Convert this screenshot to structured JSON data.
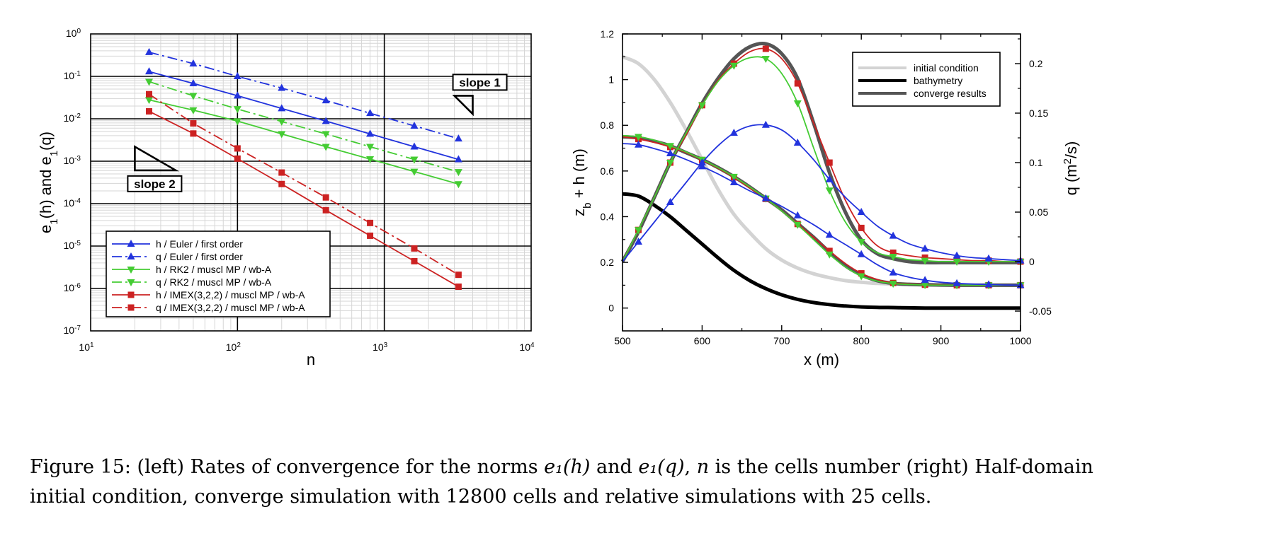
{
  "chart_data": [
    {
      "type": "line",
      "xscale": "log",
      "yscale": "log",
      "xlim": [
        10,
        10000
      ],
      "ylim": [
        1e-07,
        1
      ],
      "xlabel": "n",
      "ylabel": "e1(h)  and  e1(q)",
      "xtick_labels": [
        "10^1",
        "10^2",
        "10^3",
        "10^4"
      ],
      "ytick_labels": [
        "10^0",
        "10^-1",
        "10^-2",
        "10^-3",
        "10^-4",
        "10^-5",
        "10^-6",
        "10^-7"
      ],
      "grid": true,
      "legend_position": "bottom-left",
      "x": [
        25,
        50,
        100,
        200,
        400,
        800,
        1600,
        3200
      ],
      "series": [
        {
          "name": "h / Euler / first order",
          "color": "#2233dd",
          "dash": "solid",
          "marker": "triangle-up",
          "values": [
            0.13,
            0.068,
            0.035,
            0.0175,
            0.0088,
            0.0044,
            0.0022,
            0.0011
          ]
        },
        {
          "name": "q / Euler / first order",
          "color": "#2233dd",
          "dash": "dashdot",
          "marker": "triangle-up",
          "values": [
            0.37,
            0.2,
            0.1,
            0.053,
            0.027,
            0.0135,
            0.0068,
            0.0034
          ]
        },
        {
          "name": "h / RK2 / muscl MP / wb-A",
          "color": "#44cc33",
          "dash": "solid",
          "marker": "triangle-down",
          "values": [
            0.028,
            0.016,
            0.0088,
            0.0044,
            0.0022,
            0.00112,
            0.00057,
            0.00029
          ]
        },
        {
          "name": "q / RK2 / muscl MP / wb-A",
          "color": "#44cc33",
          "dash": "dashdot",
          "marker": "triangle-down",
          "values": [
            0.075,
            0.035,
            0.017,
            0.0086,
            0.0044,
            0.0022,
            0.0011,
            0.00056
          ]
        },
        {
          "name": "h / IMEX(3,2,2) / muscl MP / wb-A",
          "color": "#cc2222",
          "dash": "solid",
          "marker": "square",
          "values": [
            0.015,
            0.0045,
            0.00115,
            0.00029,
            7e-05,
            1.75e-05,
            4.4e-06,
            1.1e-06
          ]
        },
        {
          "name": "q / IMEX(3,2,2) / muscl MP / wb-A",
          "color": "#cc2222",
          "dash": "dashdot",
          "marker": "square",
          "values": [
            0.038,
            0.0078,
            0.002,
            0.00054,
            0.00014,
            3.5e-05,
            8.8e-06,
            2.1e-06
          ]
        }
      ],
      "annotations": [
        {
          "text": "slope 1",
          "triangle_n": [
            3000,
            4000
          ],
          "triangle_e": [
            0.035,
            0.013
          ],
          "slope": 1
        },
        {
          "text": "slope 2",
          "triangle_n": [
            20,
            38
          ],
          "triangle_e": [
            0.0022,
            0.00061
          ],
          "slope": 2
        }
      ]
    },
    {
      "type": "line",
      "xlim": [
        500,
        1000
      ],
      "ylim": [
        -0.1,
        1.2
      ],
      "y2lim": [
        -0.07,
        0.23
      ],
      "xlabel": "x (m)",
      "ylabel": "z_b + h (m)",
      "y2label": "q (m^2/s)",
      "xticks": [
        500,
        600,
        700,
        800,
        900,
        1000
      ],
      "yticks": [
        0,
        0.2,
        0.4,
        0.6,
        0.8,
        1,
        1.2
      ],
      "y2ticks": [
        -0.05,
        0,
        0.05,
        0.1,
        0.15,
        0.2
      ],
      "xtick_labels": [
        "500",
        "600",
        "700",
        "800",
        "900",
        "1000"
      ],
      "ytick_labels": [
        "0",
        "0.2",
        "0.4",
        "0.6",
        "0.8",
        "1",
        "1.2"
      ],
      "y2tick_labels": [
        "-0.05",
        "0",
        "0.05",
        "0.1",
        "0.15",
        "0.2"
      ],
      "legend_position": "top-right",
      "legend": [
        {
          "name": "initial condition",
          "color": "#d3d3d3"
        },
        {
          "name": "bathymetry",
          "color": "#000000"
        },
        {
          "name": "converge results",
          "color": "#555555"
        }
      ],
      "x": [
        500,
        520,
        540,
        560,
        580,
        600,
        620,
        640,
        660,
        680,
        700,
        720,
        740,
        760,
        780,
        800,
        820,
        840,
        860,
        880,
        900,
        920,
        940,
        960,
        980,
        1000
      ],
      "series": [
        {
          "name": "initial condition",
          "color": "#d3d3d3",
          "axis": "left",
          "marker": "none",
          "values": [
            1.1,
            1.07,
            1.0,
            0.9,
            0.78,
            0.65,
            0.52,
            0.41,
            0.33,
            0.26,
            0.21,
            0.175,
            0.15,
            0.133,
            0.12,
            0.113,
            0.108,
            0.105,
            0.103,
            0.102,
            0.101,
            0.1,
            0.1,
            0.1,
            0.1,
            0.1
          ]
        },
        {
          "name": "bathymetry",
          "color": "#000000",
          "axis": "left",
          "marker": "none",
          "values": [
            0.5,
            0.49,
            0.45,
            0.4,
            0.34,
            0.28,
            0.22,
            0.165,
            0.12,
            0.085,
            0.058,
            0.038,
            0.024,
            0.015,
            0.009,
            0.005,
            0.003,
            0.002,
            0.001,
            0.0,
            0.0,
            0.0,
            0.0,
            0.0,
            0.0,
            0.0
          ]
        },
        {
          "name": "converge results (z_b + h)",
          "color": "#555555",
          "axis": "left",
          "marker": "none",
          "values": [
            0.75,
            0.745,
            0.73,
            0.71,
            0.68,
            0.65,
            0.615,
            0.575,
            0.53,
            0.48,
            0.43,
            0.37,
            0.31,
            0.245,
            0.185,
            0.145,
            0.12,
            0.108,
            0.104,
            0.102,
            0.101,
            0.1,
            0.1,
            0.1,
            0.1,
            0.1
          ]
        },
        {
          "name": "converge results (q)",
          "color": "#555555",
          "axis": "right",
          "marker": "none",
          "values": [
            0.0,
            0.03,
            0.065,
            0.1,
            0.13,
            0.16,
            0.185,
            0.205,
            0.217,
            0.22,
            0.21,
            0.185,
            0.14,
            0.09,
            0.05,
            0.022,
            0.008,
            0.003,
            0.0,
            -0.001,
            -0.001,
            -0.001,
            -0.001,
            -0.001,
            -0.001,
            -0.001
          ]
        },
        {
          "name": "IMEX (z_b + h)",
          "color": "#cc2222",
          "axis": "left",
          "marker": "square",
          "values": [
            0.75,
            0.74,
            0.725,
            0.705,
            0.68,
            0.648,
            0.612,
            0.572,
            0.525,
            0.478,
            0.425,
            0.368,
            0.31,
            0.25,
            0.195,
            0.152,
            0.125,
            0.11,
            0.105,
            0.102,
            0.101,
            0.1,
            0.1,
            0.1,
            0.1,
            0.1
          ]
        },
        {
          "name": "IMEX (q)",
          "color": "#cc2222",
          "axis": "right",
          "marker": "square",
          "values": [
            0.0,
            0.032,
            0.065,
            0.1,
            0.128,
            0.158,
            0.183,
            0.2,
            0.212,
            0.215,
            0.205,
            0.18,
            0.14,
            0.1,
            0.062,
            0.034,
            0.016,
            0.009,
            0.006,
            0.004,
            0.003,
            0.002,
            0.001,
            0.001,
            0.0,
            0.0
          ]
        },
        {
          "name": "RK2 (z_b + h)",
          "color": "#44cc33",
          "axis": "left",
          "marker": "triangle-down",
          "values": [
            0.755,
            0.75,
            0.735,
            0.71,
            0.683,
            0.65,
            0.615,
            0.575,
            0.53,
            0.48,
            0.425,
            0.365,
            0.3,
            0.235,
            0.18,
            0.14,
            0.118,
            0.107,
            0.103,
            0.101,
            0.1,
            0.1,
            0.1,
            0.1,
            0.1,
            0.1
          ]
        },
        {
          "name": "RK2 (q)",
          "color": "#44cc33",
          "axis": "right",
          "marker": "triangle-down",
          "values": [
            0.0,
            0.032,
            0.065,
            0.1,
            0.13,
            0.158,
            0.182,
            0.198,
            0.206,
            0.205,
            0.19,
            0.16,
            0.115,
            0.072,
            0.04,
            0.02,
            0.009,
            0.005,
            0.002,
            0.001,
            0.0,
            0.0,
            0.0,
            0.0,
            0.0,
            0.0
          ]
        },
        {
          "name": "Euler (z_b + h)",
          "color": "#2233dd",
          "axis": "left",
          "marker": "triangle-up",
          "values": [
            0.72,
            0.715,
            0.698,
            0.677,
            0.65,
            0.62,
            0.587,
            0.55,
            0.513,
            0.48,
            0.445,
            0.405,
            0.365,
            0.32,
            0.278,
            0.235,
            0.19,
            0.155,
            0.135,
            0.122,
            0.113,
            0.108,
            0.105,
            0.103,
            0.101,
            0.1
          ]
        },
        {
          "name": "Euler (q)",
          "color": "#2233dd",
          "axis": "right",
          "marker": "triangle-up",
          "values": [
            0.0,
            0.02,
            0.04,
            0.06,
            0.08,
            0.1,
            0.117,
            0.13,
            0.137,
            0.138,
            0.133,
            0.12,
            0.103,
            0.083,
            0.065,
            0.05,
            0.036,
            0.026,
            0.018,
            0.013,
            0.009,
            0.006,
            0.004,
            0.003,
            0.002,
            0.001
          ]
        }
      ]
    }
  ],
  "caption": {
    "line1_a": "Figure 15: (left) Rates of convergence for the norms ",
    "math1": "e₁(h)",
    "line1_b": " and ",
    "math2": "e₁(q)",
    "line1_c": ", ",
    "math3": "n",
    "line1_d": " is the cells number (right) Half-domain",
    "line2": "initial condition, converge simulation with 12800 cells and relative simulations with 25 cells."
  }
}
